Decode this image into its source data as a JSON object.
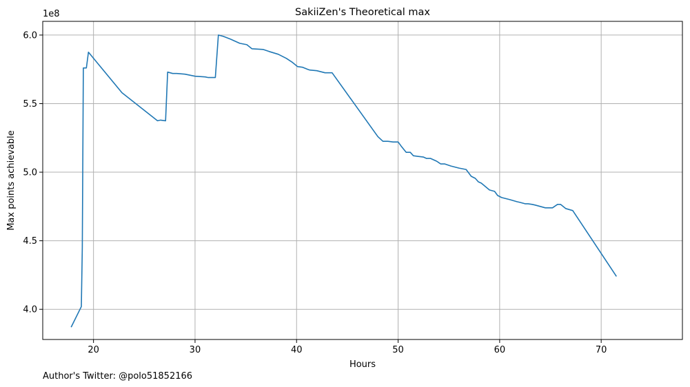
{
  "chart_data": {
    "type": "line",
    "title": "SakiiZen's Theoretical max",
    "xlabel": "Hours",
    "ylabel": "Max points achievable",
    "y_scale_label": "1e8",
    "xlim": [
      15,
      78
    ],
    "ylim": [
      3.78,
      6.1
    ],
    "x_ticks": [
      20,
      30,
      40,
      50,
      60,
      70
    ],
    "y_ticks": [
      4.0,
      4.5,
      5.0,
      5.5,
      6.0
    ],
    "x_tick_labels": [
      "20",
      "30",
      "40",
      "50",
      "60",
      "70"
    ],
    "y_tick_labels": [
      "4.0",
      "4.5",
      "5.0",
      "5.5",
      "6.0"
    ],
    "grid": true,
    "line_color": "#1f77b4",
    "series": [
      {
        "x": [
          17.8,
          18.8,
          18.9,
          19.0,
          19.3,
          19.5,
          22.8,
          26.3,
          26.6,
          27.1,
          27.3,
          27.8,
          28.2,
          29.0,
          30.0,
          31.0,
          31.3,
          31.6,
          32.0,
          32.3,
          32.8,
          33.5,
          33.8,
          34.4,
          35.1,
          35.6,
          36.7,
          37.3,
          38.2,
          39.0,
          39.6,
          40.1,
          40.6,
          41.1,
          41.3,
          42.0,
          42.8,
          43.5,
          48.0,
          48.5,
          49.0,
          49.5,
          50.0,
          50.3,
          50.8,
          51.2,
          51.5,
          52.0,
          52.5,
          52.8,
          53.2,
          53.8,
          54.2,
          54.6,
          55.2,
          56.0,
          56.7,
          57.2,
          57.6,
          57.9,
          58.2,
          59.0,
          59.5,
          59.8,
          60.2,
          61.0,
          61.7,
          62.0,
          62.5,
          62.8,
          63.2,
          63.5,
          64.0,
          64.5,
          64.8,
          65.2,
          65.7,
          66.0,
          66.5,
          67.2,
          71.5
        ],
        "y": [
          3.87,
          4.02,
          4.45,
          5.76,
          5.76,
          5.875,
          5.58,
          5.375,
          5.38,
          5.375,
          5.73,
          5.72,
          5.72,
          5.715,
          5.7,
          5.695,
          5.69,
          5.69,
          5.69,
          6.0,
          5.99,
          5.97,
          5.96,
          5.94,
          5.93,
          5.9,
          5.895,
          5.88,
          5.86,
          5.83,
          5.8,
          5.77,
          5.765,
          5.75,
          5.745,
          5.74,
          5.725,
          5.725,
          5.26,
          5.225,
          5.225,
          5.22,
          5.22,
          5.19,
          5.145,
          5.145,
          5.12,
          5.115,
          5.11,
          5.1,
          5.1,
          5.08,
          5.06,
          5.06,
          5.045,
          5.03,
          5.02,
          4.97,
          4.955,
          4.93,
          4.92,
          4.87,
          4.86,
          4.83,
          4.815,
          4.8,
          4.785,
          4.78,
          4.77,
          4.77,
          4.765,
          4.76,
          4.75,
          4.74,
          4.74,
          4.74,
          4.765,
          4.765,
          4.735,
          4.72,
          4.24
        ]
      }
    ]
  },
  "footnote": "Author's Twitter: @polo51852166"
}
